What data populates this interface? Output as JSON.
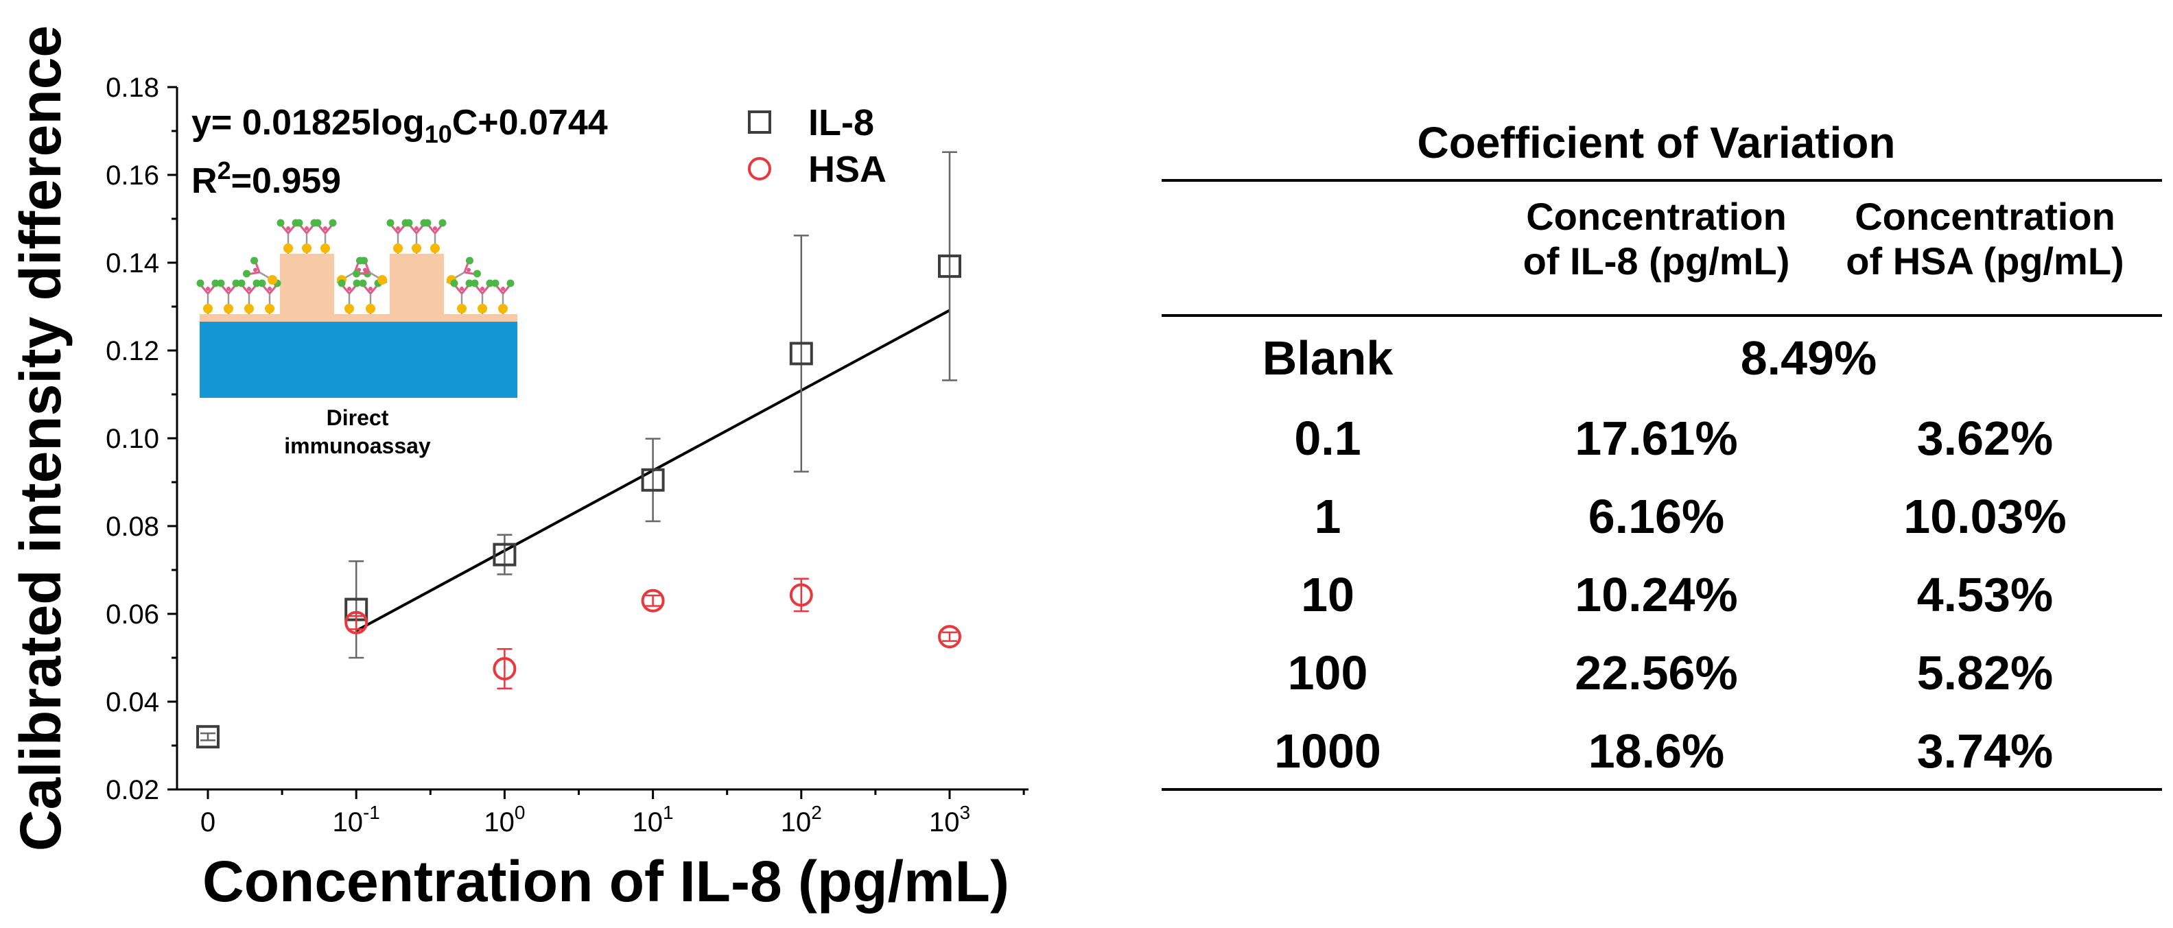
{
  "chart_data": {
    "type": "scatter",
    "title": "",
    "xlabel": "Concentration of IL-8 (pg/mL)",
    "ylabel": "Calibrated intensity difference",
    "ylim": [
      0.02,
      0.18
    ],
    "yticks": [
      "0.02",
      "0.04",
      "0.06",
      "0.08",
      "0.10",
      "0.12",
      "0.14",
      "0.16",
      "0.18"
    ],
    "x_categories": [
      {
        "base": "0",
        "sup": ""
      },
      {
        "base": "10",
        "sup": "-1"
      },
      {
        "base": "10",
        "sup": "0"
      },
      {
        "base": "10",
        "sup": "1"
      },
      {
        "base": "10",
        "sup": "2"
      },
      {
        "base": "10",
        "sup": "3"
      }
    ],
    "grid": false,
    "legend_position": "top-right",
    "series": [
      {
        "name": "IL-8",
        "marker": "square",
        "color": "#3d3d3d",
        "error_color": "#666666",
        "points": [
          {
            "cat": 0,
            "y": 0.032,
            "err": 0.0008
          },
          {
            "cat": 1,
            "y": 0.061,
            "err": 0.011
          },
          {
            "cat": 2,
            "y": 0.0735,
            "err": 0.0045
          },
          {
            "cat": 3,
            "y": 0.0905,
            "err": 0.0094
          },
          {
            "cat": 4,
            "y": 0.1193,
            "err": 0.0269
          },
          {
            "cat": 5,
            "y": 0.1392,
            "err": 0.026
          }
        ]
      },
      {
        "name": "HSA",
        "marker": "circle",
        "color": "#e8383d",
        "error_color": "#e8383d",
        "points": [
          {
            "cat": 1,
            "y": 0.058,
            "err": 0.0015
          },
          {
            "cat": 2,
            "y": 0.0475,
            "err": 0.0045
          },
          {
            "cat": 3,
            "y": 0.063,
            "err": 0.0012
          },
          {
            "cat": 4,
            "y": 0.0643,
            "err": 0.0037
          },
          {
            "cat": 5,
            "y": 0.0548,
            "err": 0.001
          }
        ]
      }
    ],
    "fit": {
      "series": "IL-8",
      "slope": 0.01825,
      "intercept": 0.0744,
      "log10_range": [
        -1,
        3
      ],
      "color": "#000000"
    },
    "annotations": {
      "equation": {
        "pre": "y= 0.01825log",
        "sub": "10",
        "post": "C+0.0744"
      },
      "r2": {
        "pre": "R",
        "sup": "2",
        "post": "=0.959"
      }
    }
  },
  "inset": {
    "label_lines": [
      "Direct",
      "immunoassay"
    ],
    "colors": {
      "substrate": "#1597d5",
      "pattern": "#f7c9a5",
      "antibody_arm": "#e05a8a",
      "antigen": "#4cb648",
      "particle": "#f5b800"
    }
  },
  "table": {
    "title": "Coefficient of Variation",
    "headers": [
      {
        "line1": "Concentration",
        "line2": "of IL-8 (pg/mL)"
      },
      {
        "line1": "Concentration",
        "line2": "of HSA (pg/mL)"
      }
    ],
    "blank_row": {
      "label": "Blank",
      "value": "8.49%"
    },
    "rows": [
      {
        "label": "0.1",
        "il8": "17.61%",
        "hsa": "3.62%"
      },
      {
        "label": "1",
        "il8": "6.16%",
        "hsa": "10.03%"
      },
      {
        "label": "10",
        "il8": "10.24%",
        "hsa": "4.53%"
      },
      {
        "label": "100",
        "il8": "22.56%",
        "hsa": "5.82%"
      },
      {
        "label": "1000",
        "il8": "18.6%",
        "hsa": "3.74%"
      }
    ]
  }
}
